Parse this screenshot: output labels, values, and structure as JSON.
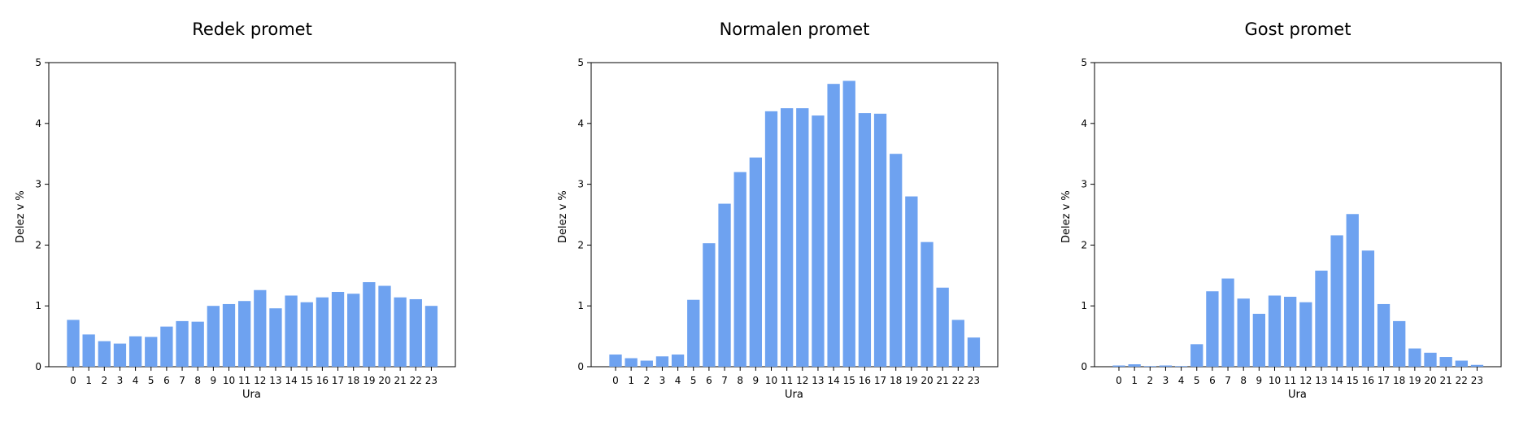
{
  "chart_data": [
    {
      "type": "bar",
      "title": "Redek promet",
      "xlabel": "Ura",
      "ylabel": "Delez v %",
      "ylim": [
        0,
        5
      ],
      "yticks": [
        0,
        1,
        2,
        3,
        4,
        5
      ],
      "grid": false,
      "bar_color": "#6ea2f0",
      "categories": [
        "0",
        "1",
        "2",
        "3",
        "4",
        "5",
        "6",
        "7",
        "8",
        "9",
        "10",
        "11",
        "12",
        "13",
        "14",
        "15",
        "16",
        "17",
        "18",
        "19",
        "20",
        "21",
        "22",
        "23"
      ],
      "values": [
        0.77,
        0.53,
        0.42,
        0.38,
        0.5,
        0.49,
        0.66,
        0.75,
        0.74,
        1.0,
        1.03,
        1.08,
        1.26,
        0.96,
        1.17,
        1.06,
        1.14,
        1.23,
        1.2,
        1.39,
        1.33,
        1.14,
        1.11,
        1.0
      ]
    },
    {
      "type": "bar",
      "title": "Normalen promet",
      "xlabel": "Ura",
      "ylabel": "Delez v %",
      "ylim": [
        0,
        5
      ],
      "yticks": [
        0,
        1,
        2,
        3,
        4,
        5
      ],
      "grid": false,
      "bar_color": "#6ea2f0",
      "categories": [
        "0",
        "1",
        "2",
        "3",
        "4",
        "5",
        "6",
        "7",
        "8",
        "9",
        "10",
        "11",
        "12",
        "13",
        "14",
        "15",
        "16",
        "17",
        "18",
        "19",
        "20",
        "21",
        "22",
        "23"
      ],
      "values": [
        0.2,
        0.14,
        0.1,
        0.17,
        0.2,
        1.1,
        2.03,
        2.68,
        3.2,
        3.44,
        4.2,
        4.25,
        4.25,
        4.13,
        4.65,
        4.7,
        4.17,
        4.16,
        3.5,
        2.8,
        2.05,
        1.3,
        0.77,
        0.48
      ]
    },
    {
      "type": "bar",
      "title": "Gost promet",
      "xlabel": "Ura",
      "ylabel": "Delez v %",
      "ylim": [
        0,
        5
      ],
      "yticks": [
        0,
        1,
        2,
        3,
        4,
        5
      ],
      "grid": false,
      "bar_color": "#6ea2f0",
      "categories": [
        "0",
        "1",
        "2",
        "3",
        "4",
        "5",
        "6",
        "7",
        "8",
        "9",
        "10",
        "11",
        "12",
        "13",
        "14",
        "15",
        "16",
        "17",
        "18",
        "19",
        "20",
        "21",
        "22",
        "23"
      ],
      "values": [
        0.02,
        0.04,
        0.01,
        0.02,
        0.01,
        0.37,
        1.24,
        1.45,
        1.12,
        0.87,
        1.17,
        1.15,
        1.06,
        1.58,
        2.16,
        2.51,
        1.91,
        1.03,
        0.75,
        0.3,
        0.23,
        0.16,
        0.1,
        0.03
      ]
    }
  ]
}
